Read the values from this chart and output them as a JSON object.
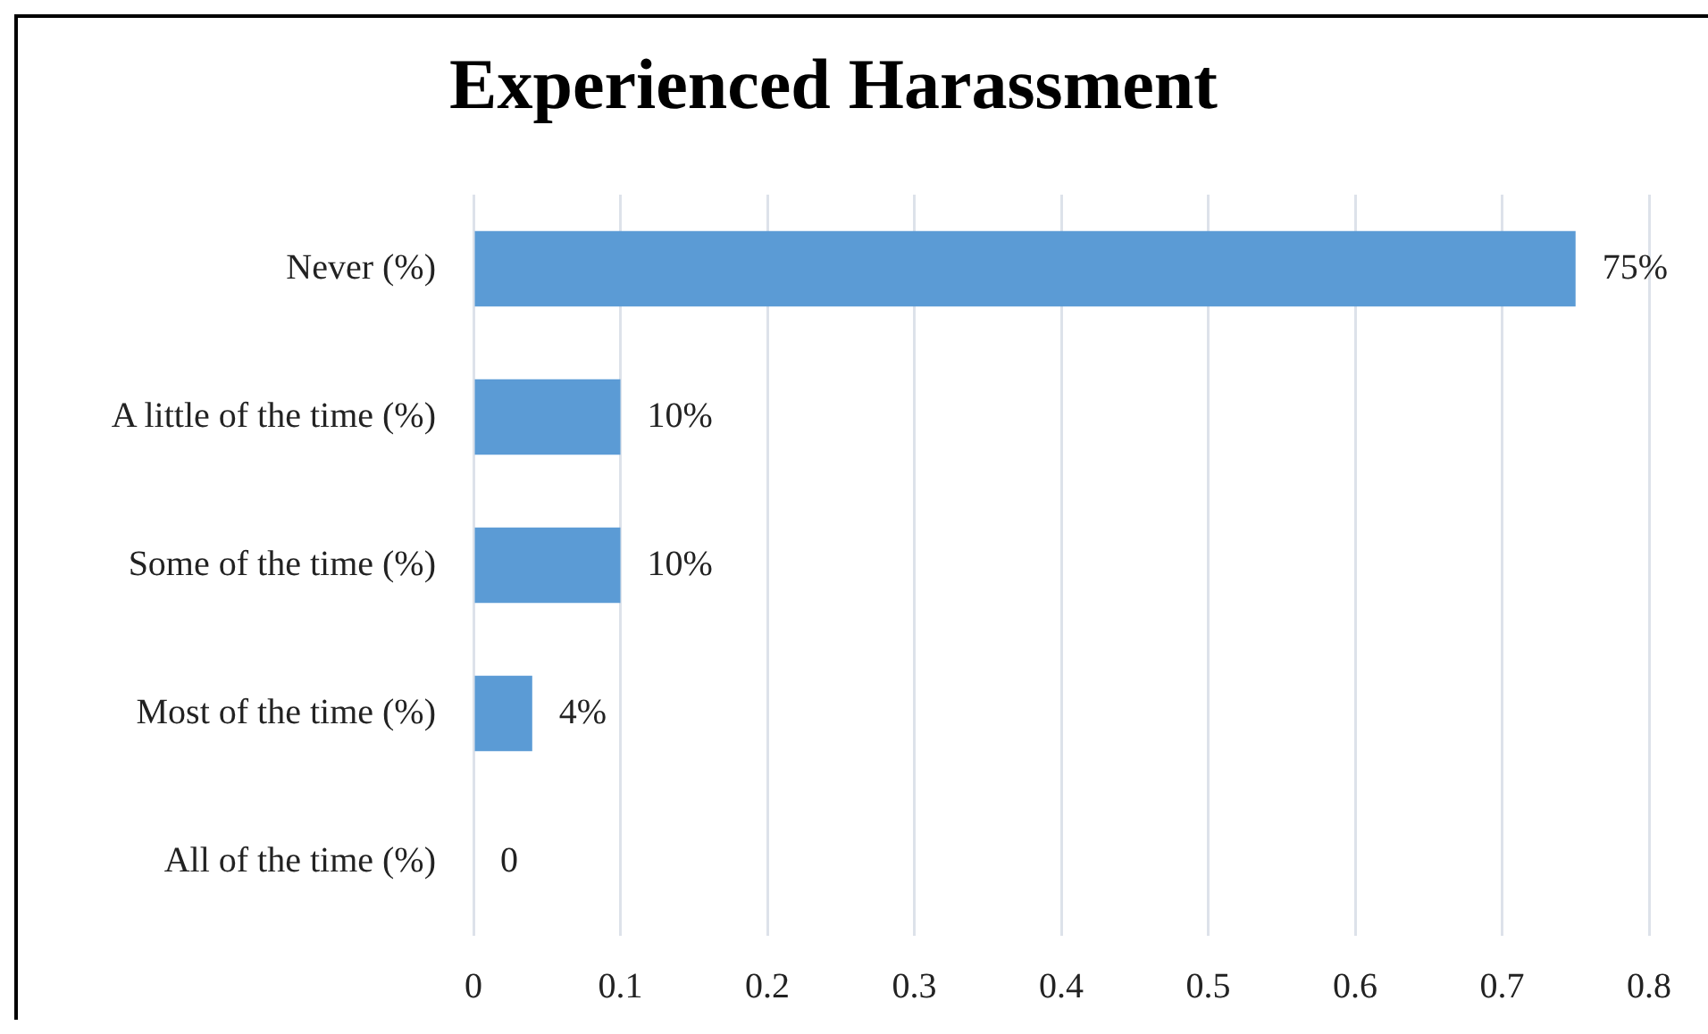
{
  "chart_data": {
    "type": "bar",
    "orientation": "horizontal",
    "title": "Experienced Harassment",
    "categories": [
      "Never (%)",
      "A little of the time (%)",
      "Some of the time (%)",
      "Most of the time (%)",
      "All of the time (%)"
    ],
    "values": [
      0.75,
      0.1,
      0.1,
      0.04,
      0
    ],
    "color": "#5b9bd5",
    "value_labels": [
      "75%",
      "10%",
      "10%",
      "4%",
      "0"
    ],
    "xlim": [
      0,
      0.8
    ],
    "xticks": [
      0,
      0.1,
      0.2,
      0.3,
      0.4,
      0.5,
      0.6,
      0.7,
      0.8
    ],
    "grid": "x"
  }
}
